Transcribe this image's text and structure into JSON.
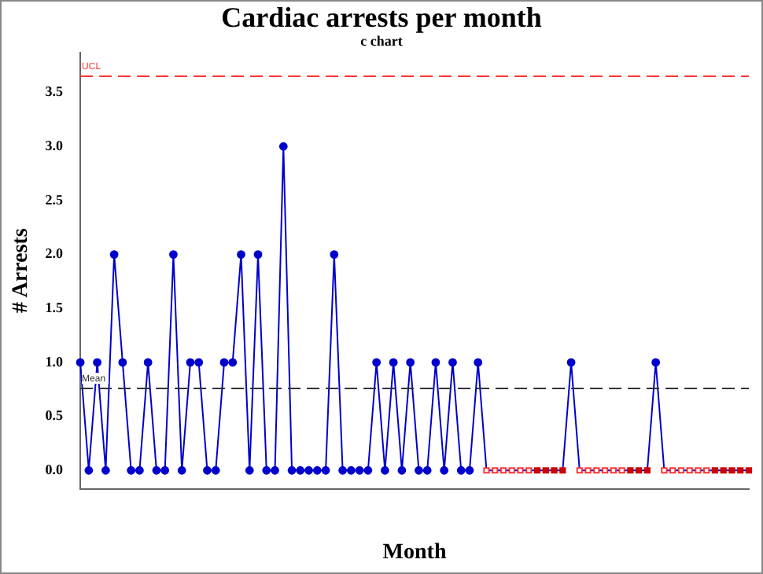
{
  "chart_data": {
    "type": "line",
    "title": "Cardiac arrests per month",
    "subtitle": "c chart",
    "xlabel": "Month",
    "ylabel": "# Arrests",
    "categories": [
      null,
      null,
      null,
      null,
      null,
      null,
      null,
      null,
      null,
      null,
      null,
      null,
      null,
      null,
      null,
      null,
      null,
      null,
      null,
      null,
      null,
      null,
      null,
      null,
      null,
      null,
      null,
      null,
      null,
      null,
      null,
      null,
      null,
      null,
      null,
      null,
      null,
      null,
      null,
      null,
      null,
      null,
      null,
      null,
      null,
      null,
      null,
      null,
      null,
      null,
      null,
      null,
      null,
      null,
      null,
      null,
      null,
      null,
      null,
      null,
      null,
      null,
      null,
      null,
      null,
      null,
      null,
      null,
      null,
      null,
      null,
      null,
      null,
      null,
      null,
      null,
      null,
      null,
      null,
      null
    ],
    "series": [
      {
        "color": "#0000cc",
        "marker": "circle",
        "values": [
          1,
          0,
          1,
          0,
          2,
          1,
          0,
          0,
          1,
          0,
          0,
          2,
          0,
          1,
          1,
          0,
          0,
          1,
          1,
          2,
          0,
          2,
          0,
          0,
          3,
          0,
          0,
          0,
          0,
          0,
          2,
          0,
          0,
          0,
          0,
          1,
          0,
          1,
          0,
          1,
          0,
          0,
          1,
          0,
          1,
          0,
          0,
          1,
          0,
          0,
          0,
          0,
          0,
          0,
          0,
          0,
          0,
          0,
          1,
          0,
          0,
          0,
          0,
          0,
          0,
          0,
          0,
          0,
          1,
          0,
          0,
          0,
          0,
          0,
          0,
          0,
          0,
          0,
          0,
          0
        ]
      },
      {
        "type": "scatter",
        "color": "#ff3333",
        "marker": "square",
        "values": [
          null,
          null,
          null,
          null,
          null,
          null,
          null,
          null,
          null,
          null,
          null,
          null,
          null,
          null,
          null,
          null,
          null,
          null,
          null,
          null,
          null,
          null,
          null,
          null,
          null,
          null,
          null,
          null,
          null,
          null,
          null,
          null,
          null,
          null,
          null,
          null,
          null,
          null,
          null,
          null,
          null,
          null,
          null,
          null,
          null,
          null,
          null,
          null,
          0,
          0,
          0,
          0,
          0,
          0,
          null,
          null,
          null,
          null,
          null,
          0,
          0,
          0,
          0,
          0,
          0,
          null,
          null,
          null,
          null,
          0,
          0,
          0,
          0,
          0,
          0,
          null,
          null,
          null,
          null,
          null
        ]
      },
      {
        "type": "scatter",
        "color": "#cc0000",
        "marker": "square",
        "values": [
          null,
          null,
          null,
          null,
          null,
          null,
          null,
          null,
          null,
          null,
          null,
          null,
          null,
          null,
          null,
          null,
          null,
          null,
          null,
          null,
          null,
          null,
          null,
          null,
          null,
          null,
          null,
          null,
          null,
          null,
          null,
          null,
          null,
          null,
          null,
          null,
          null,
          null,
          null,
          null,
          null,
          null,
          null,
          null,
          null,
          null,
          null,
          null,
          null,
          null,
          null,
          null,
          null,
          null,
          0,
          0,
          0,
          0,
          null,
          null,
          null,
          null,
          null,
          null,
          null,
          0,
          0,
          0,
          null,
          null,
          null,
          null,
          null,
          null,
          null,
          0,
          0,
          0,
          0,
          0
        ]
      }
    ],
    "ylim": [
      -0.17,
      3.87
    ],
    "yticks": [
      {
        "value": 0,
        "label": "0.0"
      },
      {
        "value": 0.5,
        "label": "0.5"
      },
      {
        "value": 1,
        "label": "1.0"
      },
      {
        "value": 1.5,
        "label": "1.5"
      },
      {
        "value": 2,
        "label": "2.0"
      },
      {
        "value": 2.5,
        "label": "2.5"
      },
      {
        "value": 3,
        "label": "3.0"
      },
      {
        "value": 3.5,
        "label": "3.5"
      }
    ],
    "ref_lines": [
      {
        "axis": "y",
        "value": 3.65,
        "label": "UCL",
        "color": "#ff3333",
        "line_style": "dashed"
      },
      {
        "axis": "y",
        "value": 0.76,
        "label": "Mean",
        "color": "#333333",
        "line_style": "dashed"
      }
    ],
    "grid": false,
    "legend": false
  }
}
